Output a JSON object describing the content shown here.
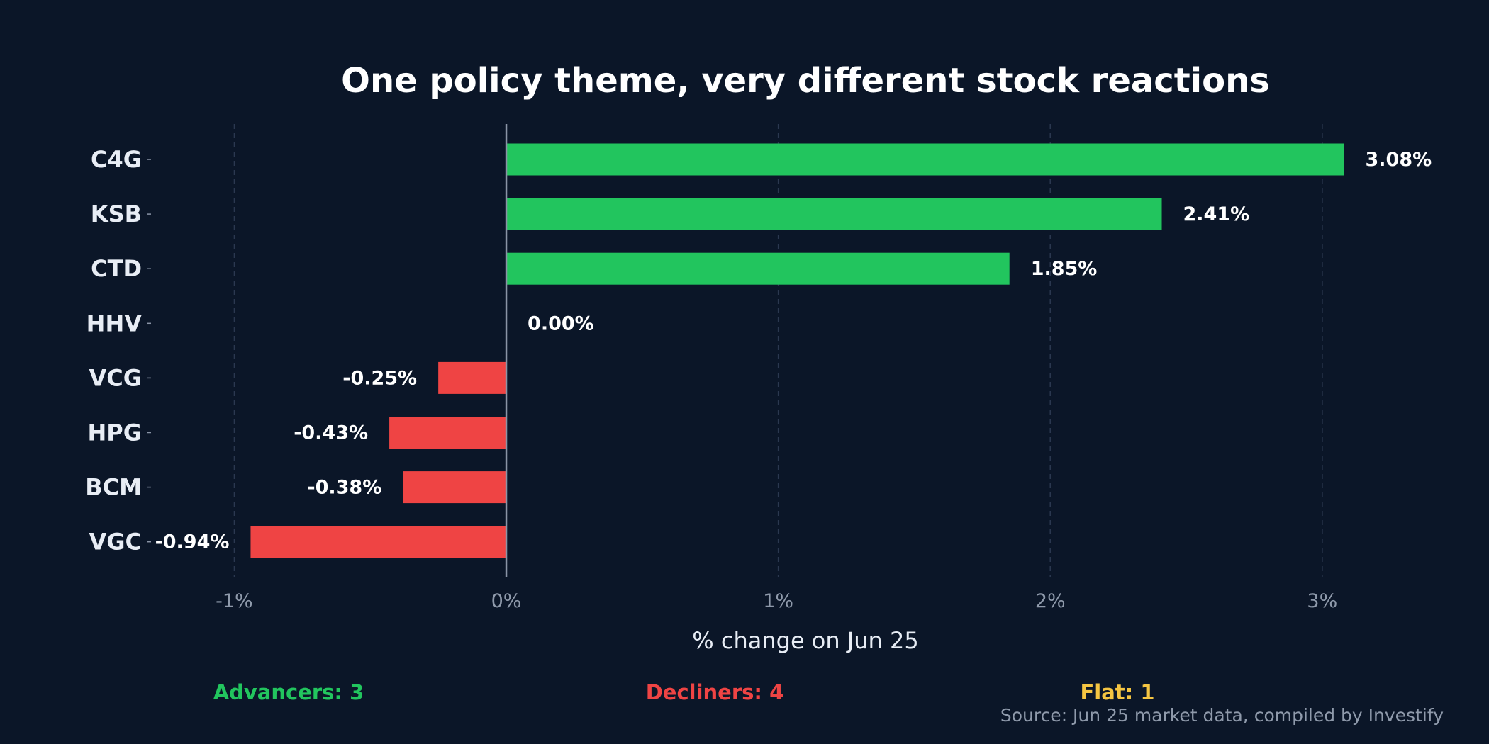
{
  "chart_data": {
    "type": "bar",
    "orientation": "horizontal",
    "title": "One policy theme, very different stock reactions",
    "xlabel": "% change on Jun 25",
    "ylabel": "",
    "categories": [
      "C4G",
      "KSB",
      "CTD",
      "HHV",
      "VCG",
      "HPG",
      "BCM",
      "VGC"
    ],
    "values": [
      3.08,
      2.41,
      1.85,
      0.0,
      -0.25,
      -0.43,
      -0.38,
      -0.94
    ],
    "value_labels": [
      "3.08%",
      "2.41%",
      "1.85%",
      "0.00%",
      "-0.25%",
      "-0.43%",
      "-0.38%",
      "-0.94%"
    ],
    "xlim": [
      -1.4,
      3.6
    ],
    "xticks": [
      -1,
      0,
      1,
      2,
      3
    ],
    "xtick_labels": [
      "-1%",
      "0%",
      "1%",
      "2%",
      "3%"
    ],
    "grid": "vertical-dashed",
    "colors": {
      "background": "#0b1628",
      "positive": "#22c55e",
      "negative": "#ef4444",
      "flat": "#f5c542",
      "grid": "#2b3850",
      "zero_line": "#8a94a6"
    }
  },
  "summary": {
    "advancers": "Advancers: 3",
    "decliners": "Decliners: 4",
    "flat": "Flat: 1"
  },
  "source": "Source: Jun 25 market data, compiled by Investify"
}
